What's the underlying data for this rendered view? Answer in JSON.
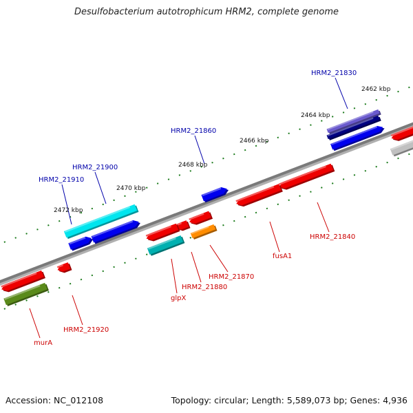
{
  "title": "Desulfobacterium autotrophicum HRM2, complete genome",
  "footer": {
    "accession": "Accession: NC_012108",
    "summary": "Topology: circular; Length: 5,589,073 bp; Genes: 4,936"
  },
  "ticks": [
    "2462 kbp",
    "2464 kbp",
    "2466 kbp",
    "2468 kbp",
    "2470 kbp",
    "2472 kbp"
  ],
  "colors": {
    "backbone": "#8a8a8a",
    "ruler": "#1a7a1a",
    "label_plus": "#0000aa",
    "label_minus": "#cc0000"
  },
  "genes": [
    {
      "label": "HRM2_21830",
      "strand": "+",
      "color": "#6a5acd"
    },
    {
      "label": "",
      "strand": "+",
      "color": "#000080"
    },
    {
      "label": "",
      "strand": "+",
      "color": "#0000ee"
    },
    {
      "label": "HRM2_21860",
      "strand": "+",
      "color": "#0000ee"
    },
    {
      "label": "HRM2_21900",
      "strand": "+",
      "color": "#00e5ee"
    },
    {
      "label": "",
      "strand": "+",
      "color": "#0000ee"
    },
    {
      "label": "HRM2_21910",
      "strand": "+",
      "color": "#0000ee"
    },
    {
      "label": "",
      "strand": "-",
      "color": "#ee0000"
    },
    {
      "label": "",
      "strand": "-",
      "color": "#c0c0c0"
    },
    {
      "label": "HRM2_21840",
      "strand": "-",
      "color": "#ee0000"
    },
    {
      "label": "fusA1",
      "strand": "-",
      "color": "#ee0000"
    },
    {
      "label": "HRM2_21870",
      "strand": "-",
      "color": "#ff8c00"
    },
    {
      "label": "",
      "strand": "-",
      "color": "#ee0000"
    },
    {
      "label": "HRM2_21880",
      "strand": "-",
      "color": "#ee0000"
    },
    {
      "label": "glpX",
      "strand": "-",
      "color": "#ee0000"
    },
    {
      "label": "",
      "strand": "-",
      "color": "#00b0b0"
    },
    {
      "label": "HRM2_21920",
      "strand": "-",
      "color": "#ee0000"
    },
    {
      "label": "murA",
      "strand": "-",
      "color": "#ee0000"
    },
    {
      "label": "",
      "strand": "-",
      "color": "#5a8a1a"
    }
  ]
}
